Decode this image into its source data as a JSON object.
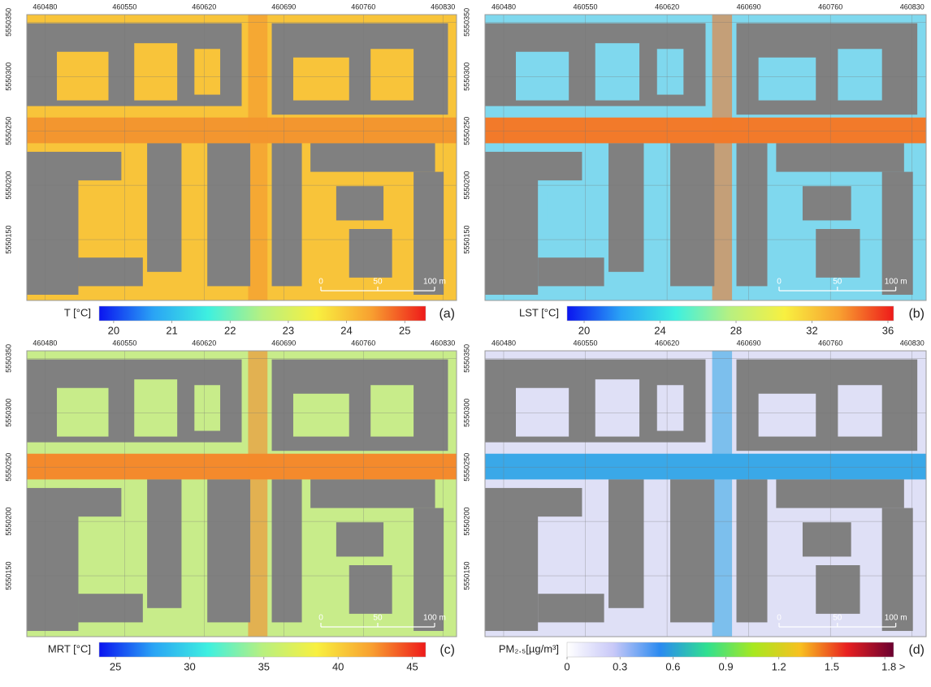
{
  "panels": [
    {
      "label": "(a)",
      "xticks": [
        460480,
        460550,
        460620,
        460690,
        460760,
        460830
      ],
      "xlim": [
        460464,
        460842
      ],
      "yticks": [
        5550350,
        5550300,
        5550250,
        5550200,
        5550150
      ],
      "ylim": [
        5550094,
        5550357
      ],
      "background_color": "#f8c43a",
      "street_color": "#f3962f",
      "scale_bar": [
        0,
        50,
        {
          "value": 100,
          "label": "100 m"
        }
      ],
      "colorbar": {
        "label": "T [°C]",
        "lim": [
          19.75,
          25.36
        ],
        "ticks": [
          20,
          21,
          22,
          23,
          24,
          25
        ],
        "colors": [
          "#0a14f0",
          "#2aa4f5",
          "#3ef0e0",
          "#b8f080",
          "#f8f040",
          "#f8a030",
          "#ee1a1a"
        ]
      }
    },
    {
      "label": "(b)",
      "xticks": [
        460480,
        460550,
        460620,
        460690,
        460760,
        460830
      ],
      "xlim": [
        460464,
        460842
      ],
      "yticks": [
        5550350,
        5550300,
        5550250,
        5550200,
        5550150
      ],
      "ylim": [
        5550094,
        5550357
      ],
      "background_color": "#7fd8ee",
      "street_color": "#f27a2a",
      "scale_bar": [
        0,
        50,
        {
          "value": 100,
          "label": "100 m"
        }
      ],
      "colorbar": {
        "label": "LST [°C]",
        "lim": [
          19.1,
          36.3
        ],
        "ticks": [
          20,
          24,
          28,
          32,
          36
        ],
        "colors": [
          "#0a14f0",
          "#2aa4f5",
          "#3ef0e0",
          "#b8f080",
          "#f8f040",
          "#f8a030",
          "#ee1a1a"
        ]
      }
    },
    {
      "label": "(c)",
      "xticks": [
        460480,
        460550,
        460620,
        460690,
        460760,
        460830
      ],
      "xlim": [
        460464,
        460842
      ],
      "yticks": [
        5550350,
        5550300,
        5550250,
        5550200,
        5550150
      ],
      "ylim": [
        5550094,
        5550357
      ],
      "background_color": "#c8ec8a",
      "street_color": "#f48a2c",
      "scale_bar": [
        0,
        50,
        {
          "value": 100,
          "label": "100 m"
        }
      ],
      "colorbar": {
        "label": "MRT [°C]",
        "lim": [
          23.9,
          45.9
        ],
        "ticks": [
          25,
          30,
          35,
          40,
          45
        ],
        "colors": [
          "#0a14f0",
          "#2aa4f5",
          "#3ef0e0",
          "#b8f080",
          "#f8f040",
          "#f8a030",
          "#ee1a1a"
        ]
      }
    },
    {
      "label": "(d)",
      "xticks": [
        460480,
        460550,
        460620,
        460690,
        460760,
        460830
      ],
      "xlim": [
        460464,
        460842
      ],
      "yticks": [
        5550350,
        5550300,
        5550250,
        5550200,
        5550150
      ],
      "ylim": [
        5550094,
        5550357
      ],
      "background_color": "#dfe0f6",
      "street_color": "#3aa8e8",
      "scale_bar": [
        0,
        50,
        {
          "value": 100,
          "label": "100 m"
        }
      ],
      "colorbar": {
        "label": "PM₂.₅[µg/m³]",
        "lim": [
          0,
          1.85
        ],
        "ticks": [
          0,
          0.3,
          0.6,
          0.9,
          1.2,
          1.5,
          {
            "value": 1.8,
            "label": "1.8 >"
          }
        ],
        "colors": [
          "#ffffff",
          "#c8c8f8",
          "#2a8af0",
          "#30e090",
          "#a8e820",
          "#f8c020",
          "#e82020",
          "#6a0030"
        ]
      }
    }
  ]
}
